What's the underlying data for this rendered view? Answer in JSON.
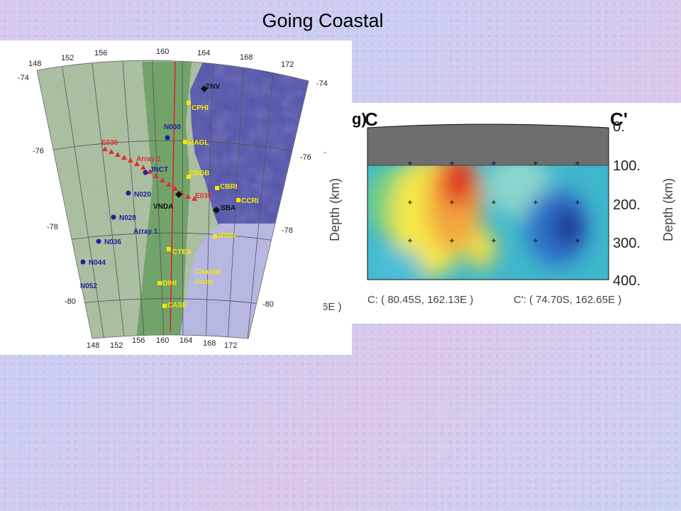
{
  "slide": {
    "title": "Going Coastal"
  },
  "map": {
    "longitude_labels_top": [
      "148",
      "152",
      "156",
      "160",
      "164",
      "168",
      "172"
    ],
    "longitude_labels_bottom": [
      "148",
      "152",
      "156",
      "160",
      "164",
      "168",
      "172"
    ],
    "latitude_labels_left": [
      "-74",
      "-76",
      "-78",
      "-80"
    ],
    "latitude_labels_right": [
      "-74",
      "-76",
      "-78",
      "-80"
    ],
    "stations_black": [
      "TNV",
      "VNDA",
      "SBA"
    ],
    "stations_yellow": [
      "CPHI",
      "MAGL",
      "CBOB",
      "CBRI",
      "CCRI",
      "MINN",
      "CTEA",
      "DIHI",
      "CASE"
    ],
    "stations_blue": [
      "N000",
      "JNCT",
      "N020",
      "N028",
      "N036",
      "N044",
      "N052"
    ],
    "stations_red": [
      "E030",
      "E030"
    ],
    "array_labels": {
      "array2": "Array 2",
      "array1": "Array 1",
      "coastal_line1": "Coastal",
      "coastal_line2": "Array"
    },
    "colors": {
      "ocean": "#5b5bb0",
      "ross_ice_shelf": "#b6b8e2",
      "land": "#8db27a",
      "profile_line": "#e02020"
    }
  },
  "section": {
    "panel_label": "g)",
    "start_label": "C",
    "end_label": "C'",
    "depth_axis_title": "Depth (km)",
    "depth_ticks": [
      "0.",
      "100.",
      "200.",
      "300.",
      "400."
    ],
    "start_coord": "C: ( 80.45S, 162.13E )",
    "end_coord": "C': ( 74.70S, 162.65E )",
    "cut_coord": "6E )"
  }
}
